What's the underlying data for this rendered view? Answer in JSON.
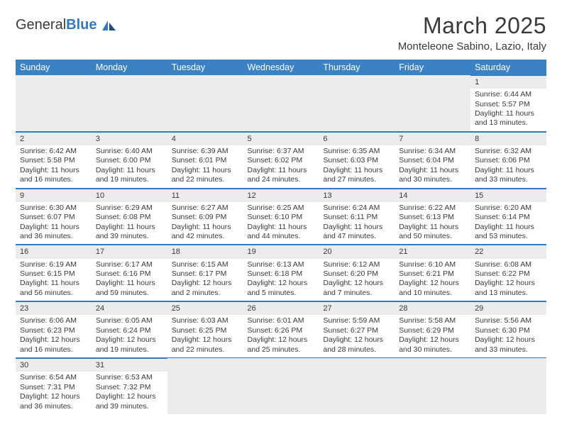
{
  "logo": {
    "word1": "General",
    "word2": "Blue"
  },
  "title": "March 2025",
  "location": "Monteleone Sabino, Lazio, Italy",
  "colors": {
    "header_bg": "#3b82c4",
    "header_text": "#ffffff",
    "daynum_bg": "#ececec",
    "border": "#2f7ac0",
    "text": "#3a3a3a",
    "page_bg": "#ffffff"
  },
  "fonts": {
    "title_size_pt": 24,
    "location_size_pt": 11,
    "dayhead_size_pt": 9.5,
    "cell_size_pt": 8
  },
  "day_headers": [
    "Sunday",
    "Monday",
    "Tuesday",
    "Wednesday",
    "Thursday",
    "Friday",
    "Saturday"
  ],
  "weeks": [
    [
      null,
      null,
      null,
      null,
      null,
      null,
      {
        "n": "1",
        "sr": "Sunrise: 6:44 AM",
        "ss": "Sunset: 5:57 PM",
        "d1": "Daylight: 11 hours",
        "d2": "and 13 minutes."
      }
    ],
    [
      {
        "n": "2",
        "sr": "Sunrise: 6:42 AM",
        "ss": "Sunset: 5:58 PM",
        "d1": "Daylight: 11 hours",
        "d2": "and 16 minutes."
      },
      {
        "n": "3",
        "sr": "Sunrise: 6:40 AM",
        "ss": "Sunset: 6:00 PM",
        "d1": "Daylight: 11 hours",
        "d2": "and 19 minutes."
      },
      {
        "n": "4",
        "sr": "Sunrise: 6:39 AM",
        "ss": "Sunset: 6:01 PM",
        "d1": "Daylight: 11 hours",
        "d2": "and 22 minutes."
      },
      {
        "n": "5",
        "sr": "Sunrise: 6:37 AM",
        "ss": "Sunset: 6:02 PM",
        "d1": "Daylight: 11 hours",
        "d2": "and 24 minutes."
      },
      {
        "n": "6",
        "sr": "Sunrise: 6:35 AM",
        "ss": "Sunset: 6:03 PM",
        "d1": "Daylight: 11 hours",
        "d2": "and 27 minutes."
      },
      {
        "n": "7",
        "sr": "Sunrise: 6:34 AM",
        "ss": "Sunset: 6:04 PM",
        "d1": "Daylight: 11 hours",
        "d2": "and 30 minutes."
      },
      {
        "n": "8",
        "sr": "Sunrise: 6:32 AM",
        "ss": "Sunset: 6:06 PM",
        "d1": "Daylight: 11 hours",
        "d2": "and 33 minutes."
      }
    ],
    [
      {
        "n": "9",
        "sr": "Sunrise: 6:30 AM",
        "ss": "Sunset: 6:07 PM",
        "d1": "Daylight: 11 hours",
        "d2": "and 36 minutes."
      },
      {
        "n": "10",
        "sr": "Sunrise: 6:29 AM",
        "ss": "Sunset: 6:08 PM",
        "d1": "Daylight: 11 hours",
        "d2": "and 39 minutes."
      },
      {
        "n": "11",
        "sr": "Sunrise: 6:27 AM",
        "ss": "Sunset: 6:09 PM",
        "d1": "Daylight: 11 hours",
        "d2": "and 42 minutes."
      },
      {
        "n": "12",
        "sr": "Sunrise: 6:25 AM",
        "ss": "Sunset: 6:10 PM",
        "d1": "Daylight: 11 hours",
        "d2": "and 44 minutes."
      },
      {
        "n": "13",
        "sr": "Sunrise: 6:24 AM",
        "ss": "Sunset: 6:11 PM",
        "d1": "Daylight: 11 hours",
        "d2": "and 47 minutes."
      },
      {
        "n": "14",
        "sr": "Sunrise: 6:22 AM",
        "ss": "Sunset: 6:13 PM",
        "d1": "Daylight: 11 hours",
        "d2": "and 50 minutes."
      },
      {
        "n": "15",
        "sr": "Sunrise: 6:20 AM",
        "ss": "Sunset: 6:14 PM",
        "d1": "Daylight: 11 hours",
        "d2": "and 53 minutes."
      }
    ],
    [
      {
        "n": "16",
        "sr": "Sunrise: 6:19 AM",
        "ss": "Sunset: 6:15 PM",
        "d1": "Daylight: 11 hours",
        "d2": "and 56 minutes."
      },
      {
        "n": "17",
        "sr": "Sunrise: 6:17 AM",
        "ss": "Sunset: 6:16 PM",
        "d1": "Daylight: 11 hours",
        "d2": "and 59 minutes."
      },
      {
        "n": "18",
        "sr": "Sunrise: 6:15 AM",
        "ss": "Sunset: 6:17 PM",
        "d1": "Daylight: 12 hours",
        "d2": "and 2 minutes."
      },
      {
        "n": "19",
        "sr": "Sunrise: 6:13 AM",
        "ss": "Sunset: 6:18 PM",
        "d1": "Daylight: 12 hours",
        "d2": "and 5 minutes."
      },
      {
        "n": "20",
        "sr": "Sunrise: 6:12 AM",
        "ss": "Sunset: 6:20 PM",
        "d1": "Daylight: 12 hours",
        "d2": "and 7 minutes."
      },
      {
        "n": "21",
        "sr": "Sunrise: 6:10 AM",
        "ss": "Sunset: 6:21 PM",
        "d1": "Daylight: 12 hours",
        "d2": "and 10 minutes."
      },
      {
        "n": "22",
        "sr": "Sunrise: 6:08 AM",
        "ss": "Sunset: 6:22 PM",
        "d1": "Daylight: 12 hours",
        "d2": "and 13 minutes."
      }
    ],
    [
      {
        "n": "23",
        "sr": "Sunrise: 6:06 AM",
        "ss": "Sunset: 6:23 PM",
        "d1": "Daylight: 12 hours",
        "d2": "and 16 minutes."
      },
      {
        "n": "24",
        "sr": "Sunrise: 6:05 AM",
        "ss": "Sunset: 6:24 PM",
        "d1": "Daylight: 12 hours",
        "d2": "and 19 minutes."
      },
      {
        "n": "25",
        "sr": "Sunrise: 6:03 AM",
        "ss": "Sunset: 6:25 PM",
        "d1": "Daylight: 12 hours",
        "d2": "and 22 minutes."
      },
      {
        "n": "26",
        "sr": "Sunrise: 6:01 AM",
        "ss": "Sunset: 6:26 PM",
        "d1": "Daylight: 12 hours",
        "d2": "and 25 minutes."
      },
      {
        "n": "27",
        "sr": "Sunrise: 5:59 AM",
        "ss": "Sunset: 6:27 PM",
        "d1": "Daylight: 12 hours",
        "d2": "and 28 minutes."
      },
      {
        "n": "28",
        "sr": "Sunrise: 5:58 AM",
        "ss": "Sunset: 6:29 PM",
        "d1": "Daylight: 12 hours",
        "d2": "and 30 minutes."
      },
      {
        "n": "29",
        "sr": "Sunrise: 5:56 AM",
        "ss": "Sunset: 6:30 PM",
        "d1": "Daylight: 12 hours",
        "d2": "and 33 minutes."
      }
    ],
    [
      {
        "n": "30",
        "sr": "Sunrise: 6:54 AM",
        "ss": "Sunset: 7:31 PM",
        "d1": "Daylight: 12 hours",
        "d2": "and 36 minutes."
      },
      {
        "n": "31",
        "sr": "Sunrise: 6:53 AM",
        "ss": "Sunset: 7:32 PM",
        "d1": "Daylight: 12 hours",
        "d2": "and 39 minutes."
      },
      null,
      null,
      null,
      null,
      null
    ]
  ]
}
